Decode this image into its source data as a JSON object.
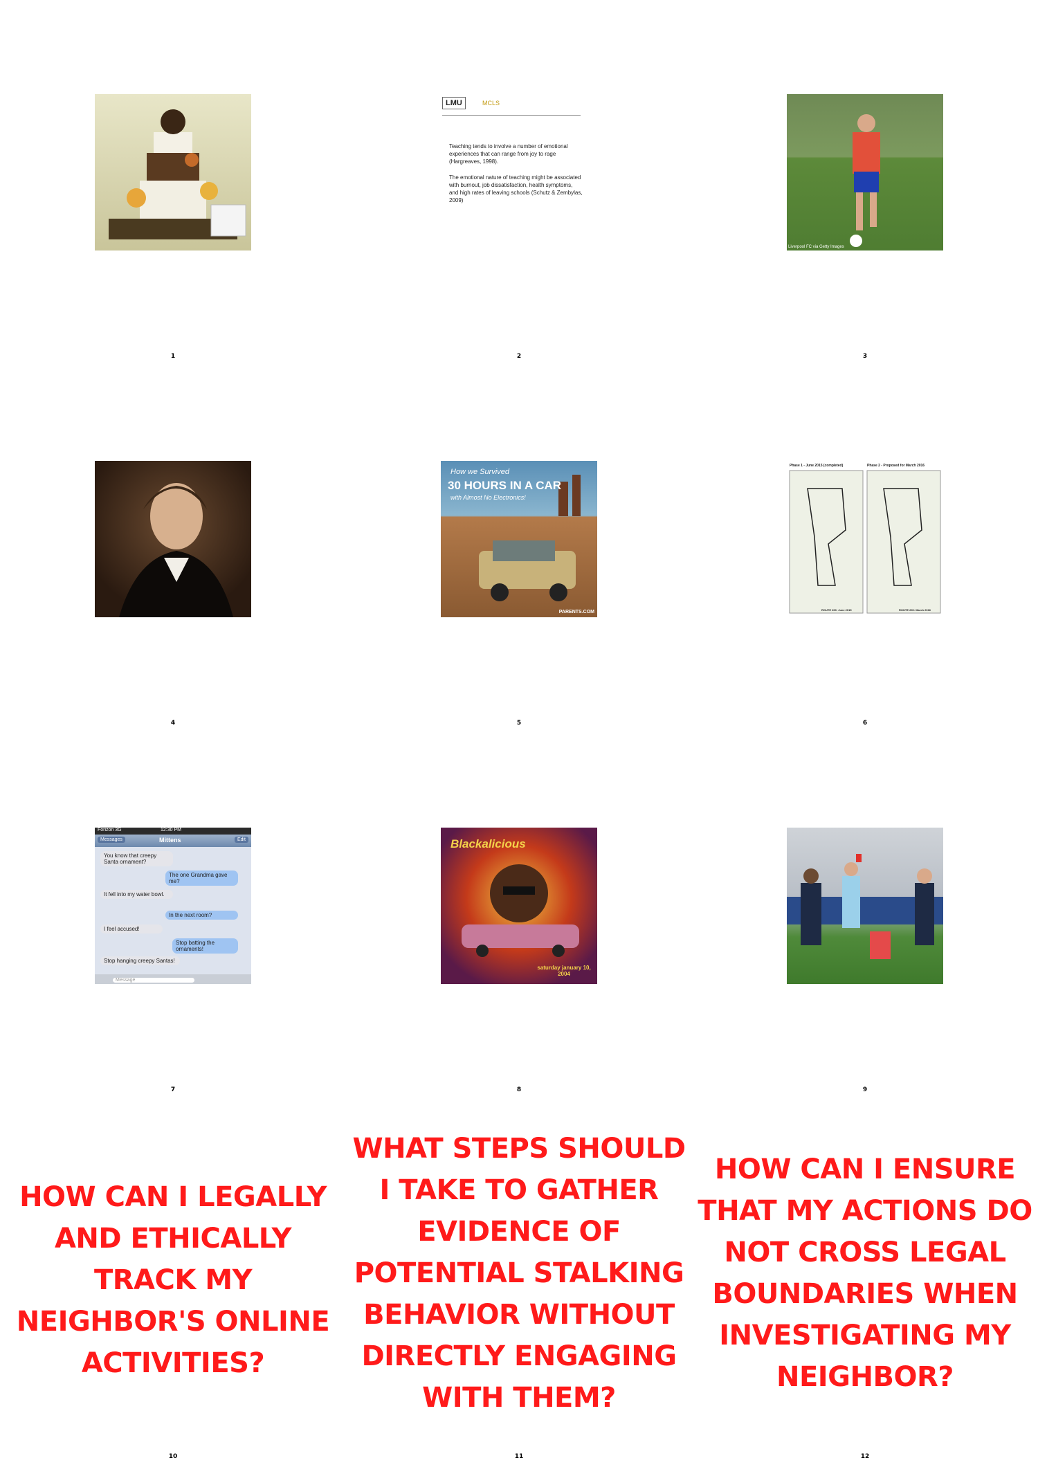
{
  "cells": [
    {
      "number": "1",
      "subject": "tiered cake on display"
    },
    {
      "number": "2",
      "subject": "lecture slide",
      "slide_lines": [
        "Teaching tends to involve a number of emotional",
        "experiences that can range from joy to rage",
        "(Hargreaves, 1998).",
        "The emotional nature of teaching might be associated",
        "with burnout, job dissatisfaction, health symptoms,",
        "and high rates of leaving schools (Schutz & Zembylas, 2009)"
      ],
      "logo_text": "LMU",
      "logo2_text": "MCLS"
    },
    {
      "number": "3",
      "subject": "soccer player training",
      "credit": "Liverpool FC via Getty Images"
    },
    {
      "number": "4",
      "subject": "portrait painting"
    },
    {
      "number": "5",
      "subject": "car poster",
      "headline": "30 HOURS IN A CAR",
      "top": "How we Survived",
      "sub": "with Almost No Electronics!",
      "site": "PARENTS.COM"
    },
    {
      "number": "6",
      "subject": "route maps",
      "left_title": "Phase 1 - June 2015 (completed)",
      "right_title": "Phase 2 - Proposed for March 2016",
      "left_footer": "ROUTE 200: June 2015",
      "right_footer": "ROUTE 200: March 2016"
    },
    {
      "number": "7",
      "subject": "text message screenshot",
      "status": "Forizon 3G",
      "time": "12:30 PM",
      "back": "Messages",
      "contact": "Mittens",
      "edit": "Edit",
      "messages": [
        {
          "side": "left",
          "text": "You know that creepy Santa ornament?"
        },
        {
          "side": "right",
          "text": "The one Grandma gave me?"
        },
        {
          "side": "left",
          "text": "It fell into my water bowl."
        },
        {
          "side": "right",
          "text": "In the next room?"
        },
        {
          "side": "left",
          "text": "I feel accused!"
        },
        {
          "side": "right",
          "text": "Stop batting the ornaments!"
        },
        {
          "side": "left",
          "text": "Stop hanging creepy Santas!"
        }
      ],
      "placeholder": "Message"
    },
    {
      "number": "8",
      "subject": "concert flyer",
      "band": "Blackalicious",
      "date": "saturday january 10, 2004"
    },
    {
      "number": "9",
      "subject": "football referee showing card"
    },
    {
      "number": "10",
      "question": "How can I legally and ethically track my neighbor's online activities?"
    },
    {
      "number": "11",
      "question": "What steps should I take to gather evidence of potential stalking behavior without directly engaging with them?"
    },
    {
      "number": "12",
      "question": "How can I ensure that my actions do not cross legal boundaries when investigating my neighbor?"
    }
  ]
}
